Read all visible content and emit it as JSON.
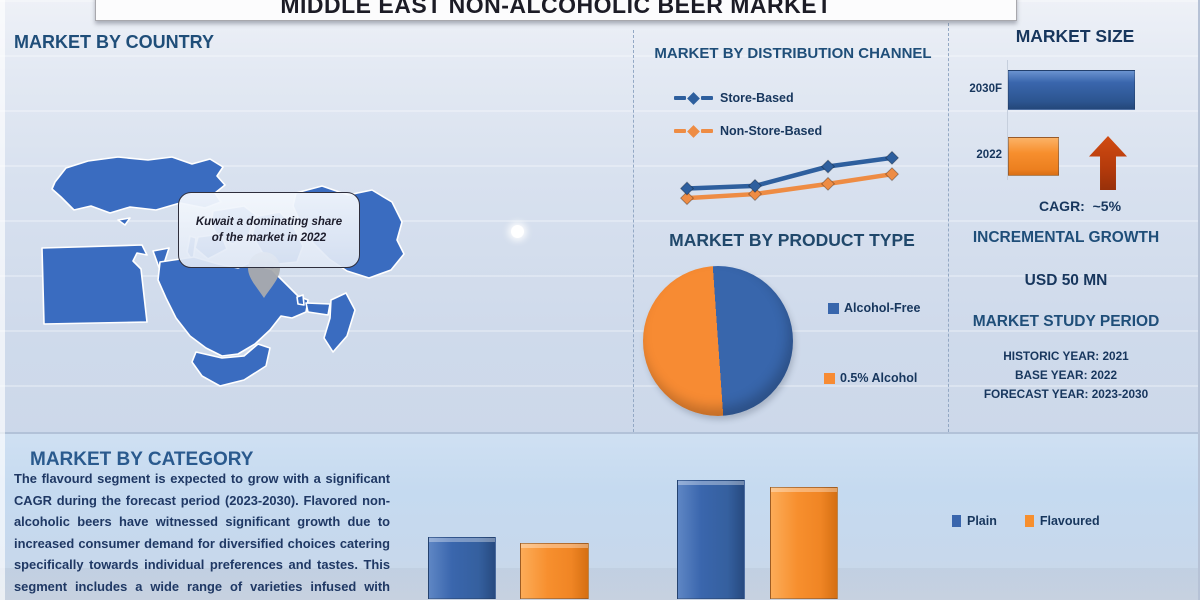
{
  "banner": {
    "title": "MIDDLE EAST NON-ALCOHOLIC BEER MARKET"
  },
  "country_section": {
    "heading": "MARKET BY COUNTRY",
    "callout_line1": "Kuwait a dominating share",
    "callout_line2": "of the market in 2022"
  },
  "distribution_section": {
    "heading": "MARKET BY DISTRIBUTION CHANNEL",
    "legend": [
      {
        "label": "Store-Based",
        "color": "#2e5f9e"
      },
      {
        "label": "Non-Store-Based",
        "color": "#ee8c44"
      }
    ]
  },
  "product_section": {
    "heading": "MARKET BY PRODUCT TYPE",
    "legend": [
      {
        "label": "Alcohol-Free",
        "color": "#3866ac"
      },
      {
        "label": "0.5% Alcohol",
        "color": "#f78b33"
      }
    ]
  },
  "size_section": {
    "heading": "MARKET SIZE",
    "rows": [
      {
        "label": "2030F"
      },
      {
        "label": "2022"
      }
    ],
    "cagr_label": "CAGR:",
    "cagr_value": "~5%"
  },
  "growth_section": {
    "heading": "INCREMENTAL GROWTH",
    "value": "USD 50 MN"
  },
  "study_section": {
    "heading": "MARKET STUDY PERIOD",
    "items": [
      "HISTORIC YEAR: 2021",
      "BASE YEAR: 2022",
      "FORECAST YEAR: 2023-2030"
    ]
  },
  "category_section": {
    "heading": "MARKET BY CATEGORY",
    "paragraph": "The flavourd segment is expected to grow with a significant CAGR during the forecast period (2023-2030). Flavored non-alcoholic beers have witnessed significant growth due to increased consumer demand for diversified choices catering specifically towards individual preferences and tastes. This segment includes a wide range of varieties infused with fruits, spices or",
    "legend": [
      {
        "label": "Plain",
        "color": "#3a66ad"
      },
      {
        "label": "Flavoured",
        "color": "#f78f2e"
      }
    ]
  },
  "chart_data": [
    {
      "name": "distribution_channel",
      "type": "line",
      "x": [
        1,
        2,
        3,
        4
      ],
      "note": "no axis labels shown; values are relative estimates",
      "series": [
        {
          "name": "Store-Based",
          "color": "#2e5f9e",
          "values": [
            10.5,
            11.0,
            14.8,
            16.5
          ]
        },
        {
          "name": "Non-Store-Based",
          "color": "#ee8c44",
          "values": [
            8.6,
            9.4,
            11.4,
            13.3
          ]
        }
      ],
      "legend_position": "top-left",
      "grid": false
    },
    {
      "name": "product_type",
      "type": "pie",
      "labels": [
        "Alcohol-Free",
        "0.5% Alcohol"
      ],
      "values": [
        50,
        50
      ],
      "colors": [
        "#3866ac",
        "#f78b33"
      ],
      "note": "approximately equal halves; blue right, orange left"
    },
    {
      "name": "market_size",
      "type": "bar",
      "orientation": "horizontal",
      "categories": [
        "2030F",
        "2022"
      ],
      "values": [
        100,
        39
      ],
      "colors": [
        "#2f5f9e",
        "#f68c2e"
      ],
      "cagr": "~5%",
      "note": "no numeric axis shown; values are relative lengths"
    },
    {
      "name": "category",
      "type": "bar",
      "categories": [
        "",
        ""
      ],
      "series": [
        {
          "name": "Plain",
          "color": "#3a66ad",
          "values": [
            34,
            67
          ]
        },
        {
          "name": "Flavoured",
          "color": "#f78f2e",
          "values": [
            31,
            63
          ]
        }
      ],
      "legend_position": "right",
      "note": "category axis labels cut off at bottom edge; values are relative heights"
    }
  ]
}
